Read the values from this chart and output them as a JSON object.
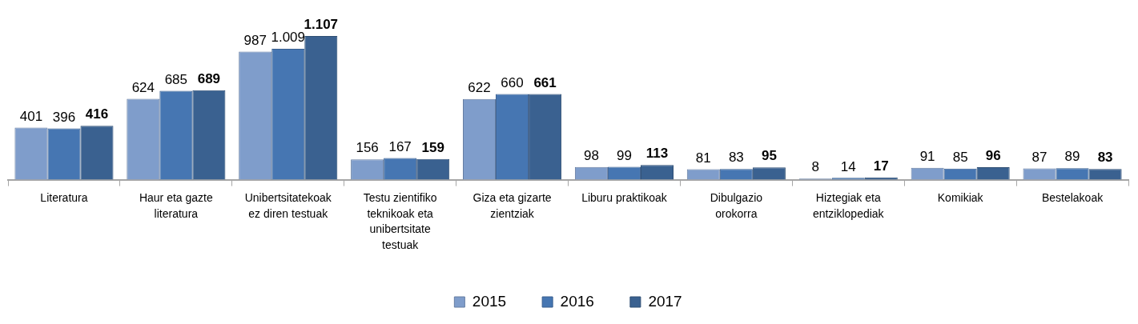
{
  "chart_data": {
    "type": "bar",
    "categories": [
      "Literatura",
      "Haur eta gazte literatura",
      "Unibertsitatekoak ez diren testuak",
      "Testu zientifiko teknikoak eta unibertsitate testuak",
      "Giza eta gizarte zientziak",
      "Liburu praktikoak",
      "Dibulgazio orokorra",
      "Hiztegiak eta entziklopediak",
      "Komikiak",
      "Bestelakoak"
    ],
    "series": [
      {
        "name": "2015",
        "color": "#7f9dcb",
        "values": [
          401,
          624,
          987,
          156,
          622,
          98,
          81,
          8,
          91,
          87
        ],
        "value_labels": [
          "401",
          "624",
          "987",
          "156",
          "622",
          "98",
          "81",
          "8",
          "91",
          "87"
        ]
      },
      {
        "name": "2016",
        "color": "#4676b2",
        "values": [
          396,
          685,
          1009,
          167,
          660,
          99,
          83,
          14,
          85,
          89
        ],
        "value_labels": [
          "396",
          "685",
          "1.009",
          "167",
          "660",
          "99",
          "83",
          "14",
          "85",
          "89"
        ]
      },
      {
        "name": "2017",
        "color": "#3a6190",
        "values": [
          416,
          689,
          1107,
          159,
          661,
          113,
          95,
          17,
          96,
          83
        ],
        "value_labels": [
          "416",
          "689",
          "1.107",
          "159",
          "661",
          "113",
          "95",
          "17",
          "96",
          "83"
        ]
      }
    ],
    "tick_labels": "x",
    "legend": "bottom"
  }
}
